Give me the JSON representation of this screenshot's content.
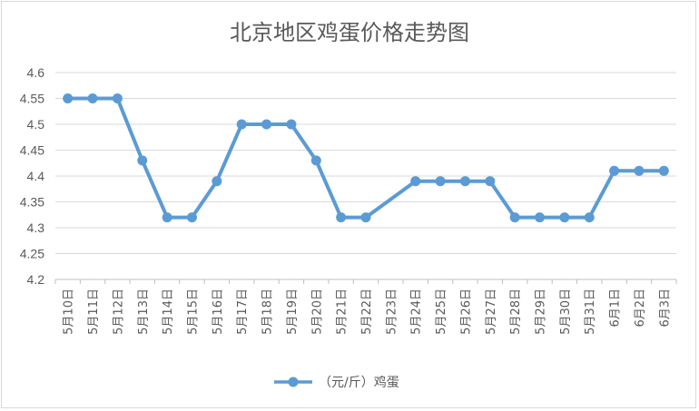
{
  "chart_data": {
    "type": "line",
    "title": "北京地区鸡蛋价格走势图",
    "xlabel": "",
    "ylabel": "",
    "ylim": [
      4.2,
      4.6
    ],
    "yticks": [
      "4.2",
      "4.25",
      "4.3",
      "4.35",
      "4.4",
      "4.45",
      "4.5",
      "4.55",
      "4.6"
    ],
    "grid": true,
    "legend_position": "bottom",
    "categories": [
      "5月10日",
      "5月11日",
      "5月12日",
      "5月13日",
      "5月14日",
      "5月15日",
      "5月16日",
      "5月17日",
      "5月18日",
      "5月19日",
      "5月20日",
      "5月21日",
      "5月22日",
      "5月23日",
      "5月24日",
      "5月25日",
      "5月26日",
      "5月27日",
      "5月28日",
      "5月29日",
      "5月30日",
      "5月31日",
      "6月1日",
      "6月2日",
      "6月3日"
    ],
    "series": [
      {
        "name": "（元/斤）鸡蛋",
        "color": "#5b9bd5",
        "values": [
          4.55,
          4.55,
          4.55,
          4.43,
          4.32,
          4.32,
          4.39,
          4.5,
          4.5,
          4.5,
          4.43,
          4.32,
          4.32,
          null,
          4.39,
          4.39,
          4.39,
          4.39,
          4.32,
          4.32,
          4.32,
          4.32,
          4.41,
          4.41,
          4.41
        ]
      }
    ]
  }
}
